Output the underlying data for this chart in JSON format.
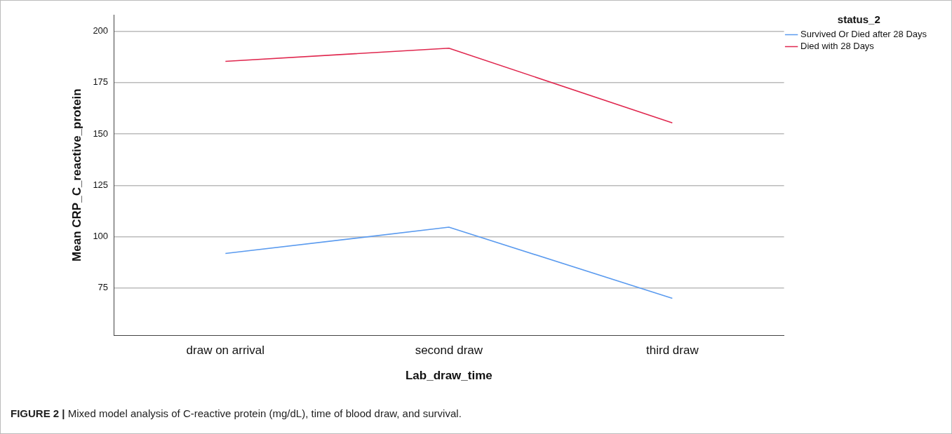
{
  "chart_data": {
    "type": "line",
    "xlabel": "Lab_draw_time",
    "ylabel": "Mean CRP_C_reactive_protein",
    "legend_title": "status_2",
    "categories": [
      "draw on arrival",
      "second draw",
      "third draw"
    ],
    "series": [
      {
        "name": "Survived Or Died after 28 Days",
        "color": "#5b9bef",
        "values": [
          91.8,
          104.6,
          70
        ]
      },
      {
        "name": "Died with 28 Days",
        "color": "#e0284f",
        "values": [
          185.3,
          191.7,
          155.4
        ]
      }
    ],
    "ylim": [
      52,
      208
    ],
    "yticks": [
      75,
      100,
      125,
      150,
      175,
      200
    ],
    "grid": "y",
    "legend": "top right",
    "marker": "none",
    "line_style": "solid",
    "annotations": [
      "FIGURE 2 | Mixed model analysis of C-reactive protein (mg/dL), time of blood draw, and survival."
    ]
  }
}
